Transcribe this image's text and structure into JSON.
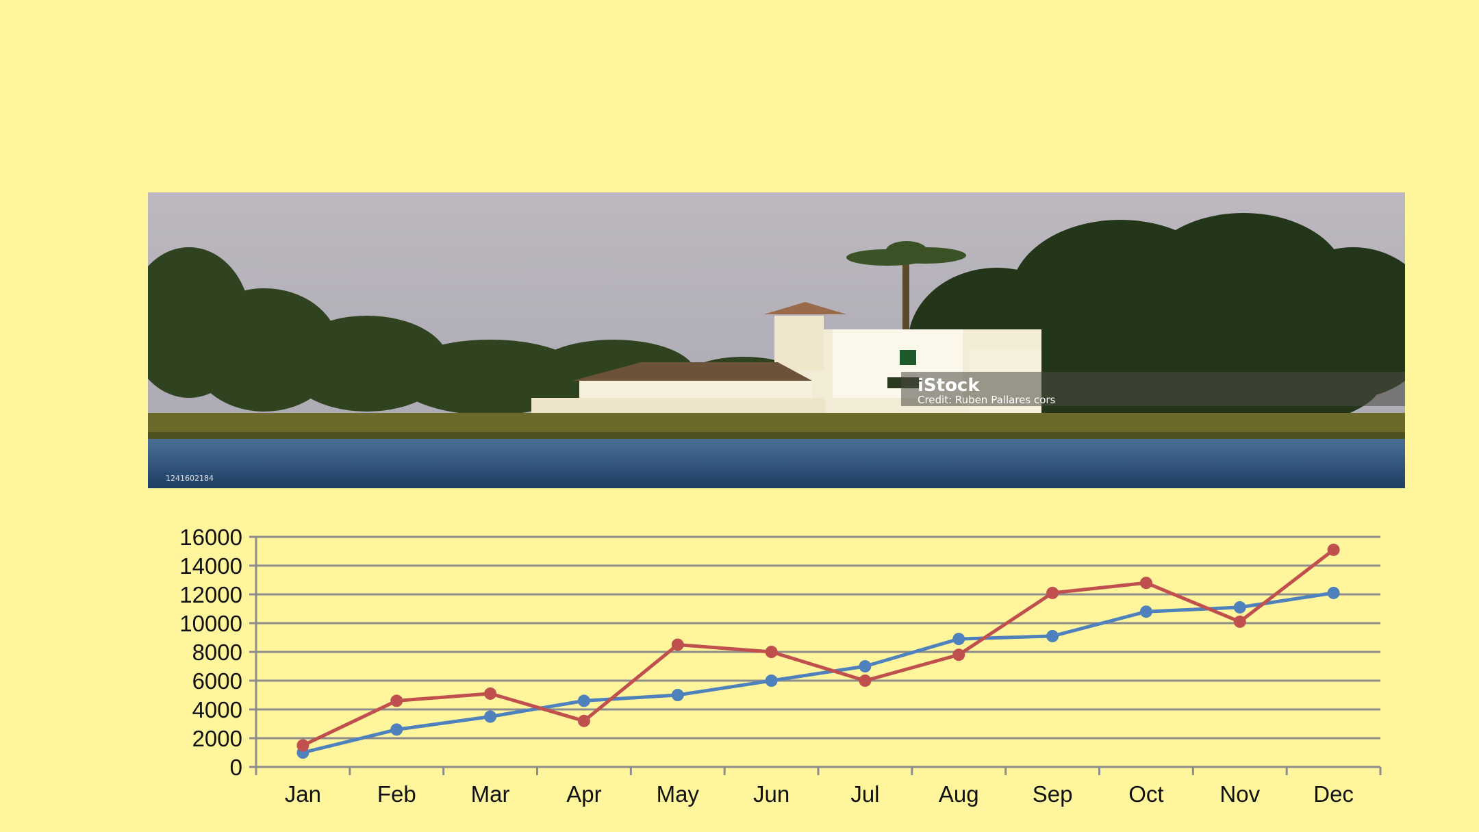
{
  "photo": {
    "brand": "iStock",
    "credit": "Credit: Ruben Pallares cors",
    "image_id": "1241602184"
  },
  "colors": {
    "background": "#FFF59D",
    "series_red": "#C0504D",
    "series_blue": "#4F81BD",
    "grid": "#8C8C8C"
  },
  "chart_data": {
    "type": "line",
    "title": "",
    "xlabel": "",
    "ylabel": "",
    "categories": [
      "Jan",
      "Feb",
      "Mar",
      "Apr",
      "May",
      "Jun",
      "Jul",
      "Aug",
      "Sep",
      "Oct",
      "Nov",
      "Dec"
    ],
    "ylim": [
      0,
      16000
    ],
    "yticks": [
      "0",
      "2000",
      "4000",
      "6000",
      "8000",
      "10000",
      "12000",
      "14000",
      "16000"
    ],
    "grid": true,
    "legend": "none",
    "series": [
      {
        "color": "#4F81BD",
        "values": [
          1000,
          2600,
          3500,
          4600,
          5000,
          6000,
          7000,
          8900,
          9100,
          10800,
          11100,
          12100
        ]
      },
      {
        "color": "#C0504D",
        "values": [
          1500,
          4600,
          5100,
          3200,
          8500,
          8000,
          6000,
          7800,
          12100,
          12800,
          10100,
          15100
        ]
      }
    ]
  }
}
